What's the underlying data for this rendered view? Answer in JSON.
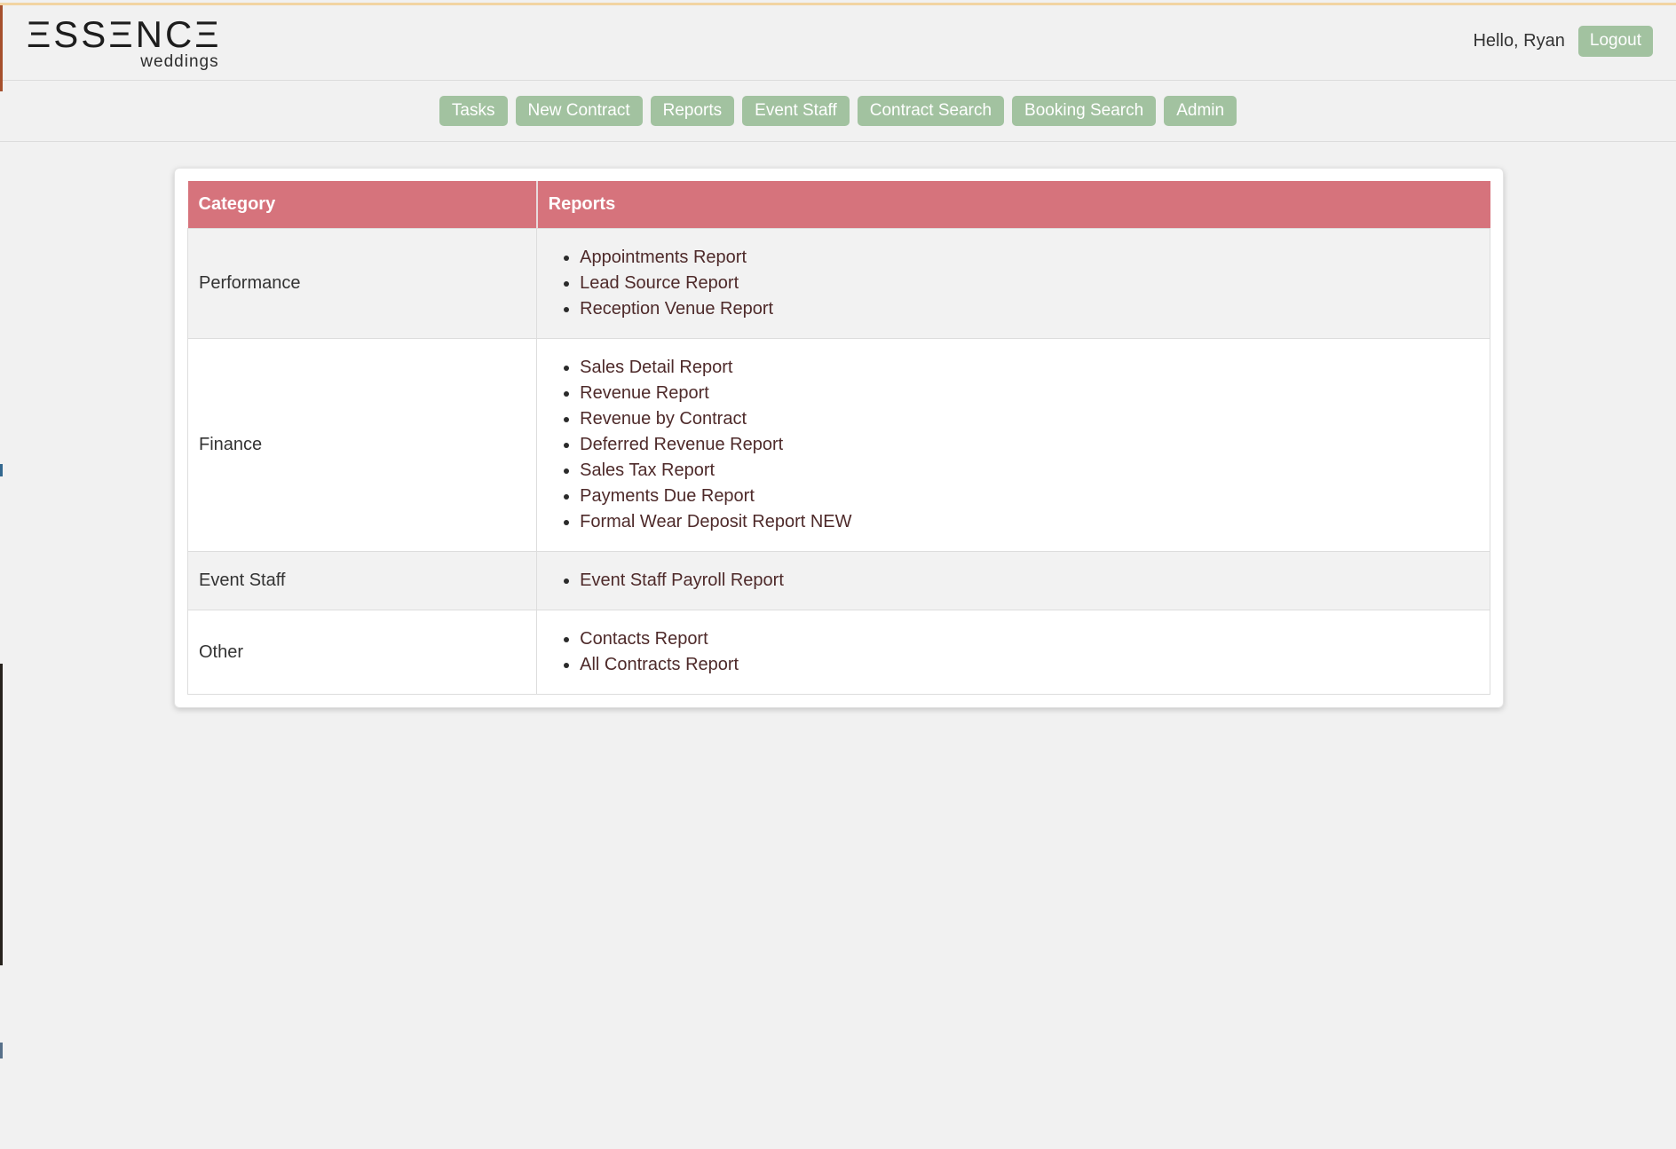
{
  "brand": {
    "name": "ESSENCE",
    "display": "ΞSSΞNCΞ",
    "tagline": "weddings"
  },
  "header": {
    "greeting": "Hello, Ryan",
    "logout_label": "Logout"
  },
  "nav": {
    "items": [
      "Tasks",
      "New Contract",
      "Reports",
      "Event Staff",
      "Contract Search",
      "Booking Search",
      "Admin"
    ]
  },
  "table": {
    "columns": [
      "Category",
      "Reports"
    ],
    "rows": [
      {
        "category": "Performance",
        "reports": [
          "Appointments Report",
          "Lead Source Report",
          "Reception Venue Report"
        ]
      },
      {
        "category": "Finance",
        "reports": [
          "Sales Detail Report",
          "Revenue Report",
          "Revenue by Contract",
          "Deferred Revenue Report",
          "Sales Tax Report",
          "Payments Due Report",
          "Formal Wear Deposit Report NEW"
        ]
      },
      {
        "category": "Event Staff",
        "reports": [
          "Event Staff Payroll Report"
        ]
      },
      {
        "category": "Other",
        "reports": [
          "Contacts Report",
          "All Contracts Report"
        ]
      }
    ]
  },
  "colors": {
    "accent_green": "#a2c2a0",
    "table_header_red": "#d6737c",
    "report_link": "#4e2a2a",
    "page_background": "#f1f1f1",
    "top_accent": "#f2d4a2"
  }
}
